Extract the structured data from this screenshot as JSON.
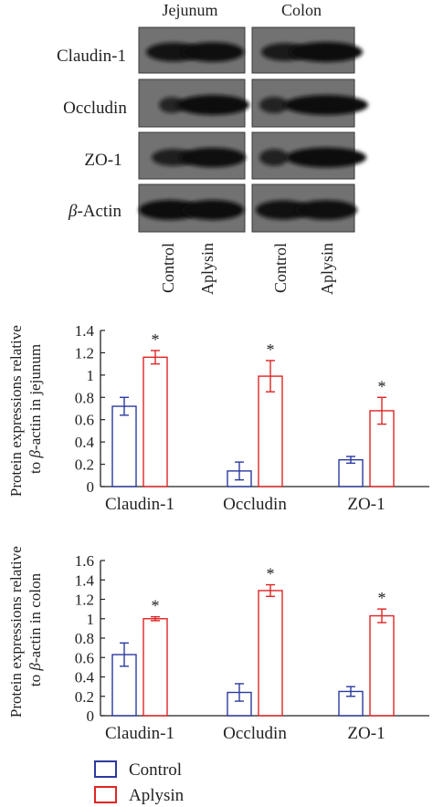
{
  "blot": {
    "tissues": [
      "Jejunum",
      "Colon"
    ],
    "proteins": [
      "Claudin-1",
      "Occludin",
      "ZO-1",
      "β-Actin"
    ],
    "lanes": [
      "Control",
      "Aplysin",
      "Control",
      "Aplysin"
    ]
  },
  "chart_data": [
    {
      "type": "bar",
      "categories": [
        "Claudin-1",
        "Occludin",
        "ZO-1"
      ],
      "series": [
        {
          "name": "Control",
          "values": [
            0.72,
            0.14,
            0.24
          ],
          "errors": [
            0.08,
            0.08,
            0.03
          ]
        },
        {
          "name": "Aplysin",
          "values": [
            1.16,
            0.99,
            0.68
          ],
          "errors": [
            0.06,
            0.14,
            0.12
          ]
        }
      ],
      "ylabel_line1": "Protein expressions relative",
      "ylabel_prefix": "to ",
      "ylabel_symbol": "β",
      "ylabel_rest": "-actin in jejunum",
      "ylim": [
        0,
        1.4
      ],
      "yticks": [
        "0",
        "0.2",
        "0.4",
        "0.6",
        "0.8",
        "1",
        "1.2",
        "1.4"
      ],
      "annotation": "*",
      "annotated_series": "Aplysin",
      "grid": false
    },
    {
      "type": "bar",
      "categories": [
        "Claudin-1",
        "Occludin",
        "ZO-1"
      ],
      "series": [
        {
          "name": "Control",
          "values": [
            0.63,
            0.24,
            0.25
          ],
          "errors": [
            0.12,
            0.09,
            0.05
          ]
        },
        {
          "name": "Aplysin",
          "values": [
            1.0,
            1.29,
            1.03
          ],
          "errors": [
            0.02,
            0.06,
            0.07
          ]
        }
      ],
      "ylabel_line1": "Protein expressions relative",
      "ylabel_prefix": "to ",
      "ylabel_symbol": "β",
      "ylabel_rest": "-actin in colon",
      "ylim": [
        0,
        1.6
      ],
      "yticks": [
        "0",
        "0.2",
        "0.4",
        "0.6",
        "0.8",
        "1",
        "1.2",
        "1.4",
        "1.6"
      ],
      "annotation": "*",
      "annotated_series": "Aplysin",
      "grid": false
    }
  ],
  "legend": {
    "placement": "bottom-left",
    "items": [
      {
        "label": "Control",
        "color": "#2b3a9e"
      },
      {
        "label": "Aplysin",
        "color": "#e02424"
      }
    ]
  },
  "colors": {
    "control": "#2b3a9e",
    "aplysin": "#e02424",
    "axis": "#222222",
    "blot_bg": "#6a6a6a",
    "band": "#141414"
  }
}
